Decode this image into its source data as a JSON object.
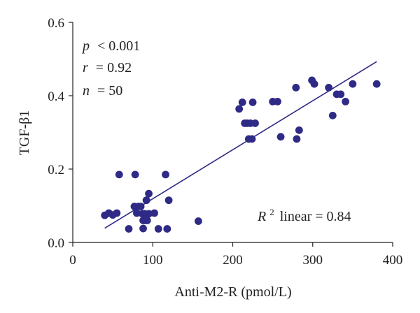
{
  "chart_data": {
    "type": "scatter",
    "xlabel": "Anti-M2-R (pmol/L)",
    "ylabel": "TGF-β1",
    "xlim": [
      0,
      400
    ],
    "ylim": [
      0,
      0.6
    ],
    "x_ticks": [
      0,
      100,
      200,
      300,
      400
    ],
    "x_tick_labels": [
      "0",
      "100",
      "200",
      "300",
      "400"
    ],
    "y_ticks": [
      0.0,
      0.2,
      0.4,
      0.6
    ],
    "y_tick_labels": [
      "0.0",
      "0.2",
      "0.4",
      "0.6"
    ],
    "grid": false,
    "marker_color": "#2e2a86",
    "line_color": "#2e2a86",
    "annotations": {
      "p_symbol": "p",
      "p_text": "< 0.001",
      "r_symbol": "r",
      "r_text": "= 0.92",
      "n_symbol": "n",
      "n_text": "= 50",
      "r2_symbol": "R",
      "r2_sup": "2",
      "r2_text": "linear = 0.84"
    },
    "fit_line": {
      "x": [
        40,
        380
      ],
      "y": [
        0.039,
        0.493
      ]
    },
    "points": [
      {
        "x": 40,
        "y": 0.074
      },
      {
        "x": 45,
        "y": 0.08
      },
      {
        "x": 50,
        "y": 0.075
      },
      {
        "x": 55,
        "y": 0.08
      },
      {
        "x": 58,
        "y": 0.185
      },
      {
        "x": 70,
        "y": 0.037
      },
      {
        "x": 77,
        "y": 0.098
      },
      {
        "x": 78,
        "y": 0.185
      },
      {
        "x": 80,
        "y": 0.08
      },
      {
        "x": 82,
        "y": 0.098
      },
      {
        "x": 85,
        "y": 0.098
      },
      {
        "x": 87,
        "y": 0.078
      },
      {
        "x": 88,
        "y": 0.038
      },
      {
        "x": 88,
        "y": 0.06
      },
      {
        "x": 90,
        "y": 0.06
      },
      {
        "x": 90,
        "y": 0.078
      },
      {
        "x": 92,
        "y": 0.115
      },
      {
        "x": 93,
        "y": 0.06
      },
      {
        "x": 95,
        "y": 0.078
      },
      {
        "x": 95,
        "y": 0.133
      },
      {
        "x": 102,
        "y": 0.08
      },
      {
        "x": 107,
        "y": 0.037
      },
      {
        "x": 116,
        "y": 0.185
      },
      {
        "x": 118,
        "y": 0.037
      },
      {
        "x": 120,
        "y": 0.115
      },
      {
        "x": 157,
        "y": 0.058
      },
      {
        "x": 208,
        "y": 0.364
      },
      {
        "x": 212,
        "y": 0.382
      },
      {
        "x": 215,
        "y": 0.325
      },
      {
        "x": 218,
        "y": 0.325
      },
      {
        "x": 220,
        "y": 0.282
      },
      {
        "x": 222,
        "y": 0.325
      },
      {
        "x": 224,
        "y": 0.282
      },
      {
        "x": 225,
        "y": 0.382
      },
      {
        "x": 228,
        "y": 0.325
      },
      {
        "x": 250,
        "y": 0.384
      },
      {
        "x": 256,
        "y": 0.384
      },
      {
        "x": 260,
        "y": 0.288
      },
      {
        "x": 279,
        "y": 0.422
      },
      {
        "x": 280,
        "y": 0.282
      },
      {
        "x": 283,
        "y": 0.306
      },
      {
        "x": 299,
        "y": 0.442
      },
      {
        "x": 302,
        "y": 0.432
      },
      {
        "x": 320,
        "y": 0.422
      },
      {
        "x": 325,
        "y": 0.346
      },
      {
        "x": 330,
        "y": 0.404
      },
      {
        "x": 335,
        "y": 0.404
      },
      {
        "x": 341,
        "y": 0.384
      },
      {
        "x": 350,
        "y": 0.432
      },
      {
        "x": 380,
        "y": 0.432
      }
    ]
  }
}
